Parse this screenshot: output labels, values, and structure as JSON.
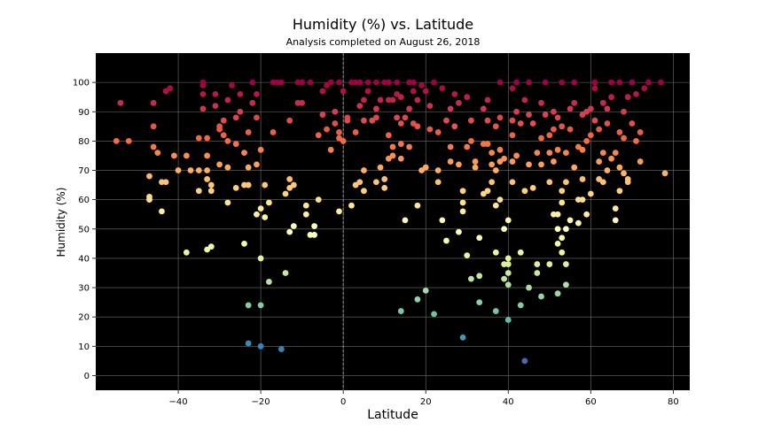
{
  "chart_data": {
    "type": "scatter",
    "title": "Humidity (%) vs. Latitude",
    "subtitle": "Analysis completed on August 26, 2018",
    "xlabel": "Latitude",
    "ylabel": "Humidity (%)",
    "xlim": [
      -60,
      84
    ],
    "ylim": [
      -5,
      110
    ],
    "xticks": [
      -40,
      -20,
      0,
      20,
      40,
      60,
      80
    ],
    "yticks": [
      0,
      10,
      20,
      30,
      40,
      50,
      60,
      70,
      80,
      90,
      100
    ],
    "grid": true,
    "background": "#000000",
    "zero_line_x": 0,
    "colormap": "Spectral",
    "points": [
      [
        -55,
        80
      ],
      [
        -52,
        80
      ],
      [
        -54,
        93
      ],
      [
        -46,
        93
      ],
      [
        -46,
        85
      ],
      [
        -46,
        78
      ],
      [
        -45,
        76
      ],
      [
        -47,
        68
      ],
      [
        -47,
        61
      ],
      [
        -47,
        60
      ],
      [
        -44,
        56
      ],
      [
        -43,
        66
      ],
      [
        -44,
        66
      ],
      [
        -42,
        98
      ],
      [
        -43,
        97
      ],
      [
        -41,
        75
      ],
      [
        -40,
        70
      ],
      [
        -38,
        75
      ],
      [
        -38,
        42
      ],
      [
        -37,
        70
      ],
      [
        -35,
        63
      ],
      [
        -35,
        70
      ],
      [
        -35,
        81
      ],
      [
        -34,
        91
      ],
      [
        -34,
        96
      ],
      [
        -34,
        99
      ],
      [
        -34,
        100
      ],
      [
        -33,
        81
      ],
      [
        -33,
        75
      ],
      [
        -33,
        70
      ],
      [
        -33,
        67
      ],
      [
        -33,
        43
      ],
      [
        -32,
        44
      ],
      [
        -32,
        65
      ],
      [
        -32,
        63
      ],
      [
        -31,
        96
      ],
      [
        -31,
        92
      ],
      [
        -30,
        85
      ],
      [
        -30,
        84
      ],
      [
        -30,
        72
      ],
      [
        -29,
        87
      ],
      [
        -29,
        82
      ],
      [
        -28,
        94
      ],
      [
        -28,
        80
      ],
      [
        -28,
        71
      ],
      [
        -28,
        59
      ],
      [
        -27,
        99
      ],
      [
        -26,
        79
      ],
      [
        -26,
        64
      ],
      [
        -26,
        88
      ],
      [
        -25,
        90
      ],
      [
        -25,
        96
      ],
      [
        -24,
        76
      ],
      [
        -24,
        65
      ],
      [
        -24,
        45
      ],
      [
        -23,
        83
      ],
      [
        -23,
        71
      ],
      [
        -23,
        65
      ],
      [
        -23,
        24
      ],
      [
        -23,
        11
      ],
      [
        -22,
        93
      ],
      [
        -22,
        100
      ],
      [
        -21,
        96
      ],
      [
        -21,
        88
      ],
      [
        -21,
        72
      ],
      [
        -21,
        55
      ],
      [
        -20,
        10
      ],
      [
        -20,
        24
      ],
      [
        -20,
        40
      ],
      [
        -20,
        57
      ],
      [
        -20,
        77
      ],
      [
        -19,
        54
      ],
      [
        -19,
        65
      ],
      [
        -18,
        59
      ],
      [
        -18,
        32
      ],
      [
        -17,
        83
      ],
      [
        -17,
        100
      ],
      [
        -16,
        100
      ],
      [
        -15,
        9
      ],
      [
        -15,
        100
      ],
      [
        -14,
        35
      ],
      [
        -14,
        62
      ],
      [
        -13,
        87
      ],
      [
        -13,
        49
      ],
      [
        -13,
        64
      ],
      [
        -13,
        67
      ],
      [
        -12,
        51
      ],
      [
        -12,
        65
      ],
      [
        -11,
        93
      ],
      [
        -11,
        100
      ],
      [
        -10,
        93
      ],
      [
        -10,
        100
      ],
      [
        -9,
        58
      ],
      [
        -9,
        55
      ],
      [
        -8,
        48
      ],
      [
        -8,
        100
      ],
      [
        -7,
        51
      ],
      [
        -7,
        48
      ],
      [
        -6,
        82
      ],
      [
        -6,
        60
      ],
      [
        -5,
        97
      ],
      [
        -5,
        89
      ],
      [
        -4,
        84
      ],
      [
        -4,
        99
      ],
      [
        -3,
        77
      ],
      [
        -3,
        100
      ],
      [
        -2,
        86
      ],
      [
        -2,
        90
      ],
      [
        -1,
        83
      ],
      [
        -1,
        56
      ],
      [
        -1,
        81
      ],
      [
        -1,
        100
      ],
      [
        0,
        97
      ],
      [
        0,
        80
      ],
      [
        1,
        87
      ],
      [
        1,
        88
      ],
      [
        2,
        58
      ],
      [
        2,
        100
      ],
      [
        3,
        65
      ],
      [
        3,
        83
      ],
      [
        3,
        100
      ],
      [
        4,
        66
      ],
      [
        4,
        92
      ],
      [
        4,
        100
      ],
      [
        5,
        63
      ],
      [
        5,
        70
      ],
      [
        5,
        87
      ],
      [
        5,
        94
      ],
      [
        6,
        100
      ],
      [
        6,
        97
      ],
      [
        7,
        87
      ],
      [
        8,
        66
      ],
      [
        8,
        88
      ],
      [
        8,
        91
      ],
      [
        8,
        100
      ],
      [
        9,
        94
      ],
      [
        9,
        71
      ],
      [
        10,
        64
      ],
      [
        10,
        100
      ],
      [
        10,
        67
      ],
      [
        11,
        74
      ],
      [
        11,
        82
      ],
      [
        11,
        94
      ],
      [
        11,
        100
      ],
      [
        12,
        75
      ],
      [
        12,
        78
      ],
      [
        12,
        94
      ],
      [
        13,
        88
      ],
      [
        13,
        96
      ],
      [
        13,
        100
      ],
      [
        14,
        22
      ],
      [
        14,
        74
      ],
      [
        14,
        79
      ],
      [
        14,
        86
      ],
      [
        14,
        95
      ],
      [
        15,
        53
      ],
      [
        15,
        88
      ],
      [
        16,
        91
      ],
      [
        16,
        78
      ],
      [
        16,
        100
      ],
      [
        17,
        100
      ],
      [
        17,
        86
      ],
      [
        17,
        97
      ],
      [
        18,
        26
      ],
      [
        18,
        58
      ],
      [
        18,
        85
      ],
      [
        18,
        94
      ],
      [
        19,
        70
      ],
      [
        19,
        99
      ],
      [
        20,
        29
      ],
      [
        20,
        71
      ],
      [
        20,
        97
      ],
      [
        21,
        92
      ],
      [
        21,
        84
      ],
      [
        22,
        21
      ],
      [
        22,
        100
      ],
      [
        23,
        83
      ],
      [
        23,
        70
      ],
      [
        23,
        66
      ],
      [
        24,
        53
      ],
      [
        24,
        98
      ],
      [
        25,
        46
      ],
      [
        25,
        87
      ],
      [
        26,
        73
      ],
      [
        26,
        78
      ],
      [
        26,
        91
      ],
      [
        27,
        85
      ],
      [
        27,
        96
      ],
      [
        28,
        72
      ],
      [
        28,
        93
      ],
      [
        28,
        49
      ],
      [
        29,
        63
      ],
      [
        29,
        59
      ],
      [
        29,
        56
      ],
      [
        29,
        13
      ],
      [
        30,
        41
      ],
      [
        30,
        78
      ],
      [
        30,
        95
      ],
      [
        31,
        33
      ],
      [
        31,
        80
      ],
      [
        31,
        87
      ],
      [
        32,
        73
      ],
      [
        32,
        71
      ],
      [
        33,
        47
      ],
      [
        33,
        34
      ],
      [
        33,
        25
      ],
      [
        34,
        62
      ],
      [
        34,
        79
      ],
      [
        34,
        91
      ],
      [
        35,
        63
      ],
      [
        35,
        79
      ],
      [
        35,
        87
      ],
      [
        35,
        94
      ],
      [
        36,
        66
      ],
      [
        36,
        72
      ],
      [
        36,
        76
      ],
      [
        37,
        58
      ],
      [
        37,
        70
      ],
      [
        37,
        85
      ],
      [
        37,
        22
      ],
      [
        37,
        42
      ],
      [
        38,
        100
      ],
      [
        38,
        88
      ],
      [
        38,
        77
      ],
      [
        38,
        73
      ],
      [
        38,
        60
      ],
      [
        39,
        50
      ],
      [
        39,
        38
      ],
      [
        39,
        33
      ],
      [
        39,
        74
      ],
      [
        40,
        40
      ],
      [
        40,
        31
      ],
      [
        40,
        38
      ],
      [
        40,
        35
      ],
      [
        40,
        19
      ],
      [
        40,
        53
      ],
      [
        41,
        66
      ],
      [
        41,
        73
      ],
      [
        41,
        82
      ],
      [
        41,
        87
      ],
      [
        41,
        98
      ],
      [
        42,
        90
      ],
      [
        42,
        75
      ],
      [
        42,
        100
      ],
      [
        43,
        24
      ],
      [
        43,
        42
      ],
      [
        43,
        86
      ],
      [
        44,
        5
      ],
      [
        44,
        63
      ],
      [
        44,
        94
      ],
      [
        45,
        72
      ],
      [
        45,
        30
      ],
      [
        45,
        100
      ],
      [
        45,
        89
      ],
      [
        46,
        64
      ],
      [
        46,
        86
      ],
      [
        47,
        38
      ],
      [
        47,
        35
      ],
      [
        47,
        76
      ],
      [
        48,
        72
      ],
      [
        48,
        27
      ],
      [
        48,
        81
      ],
      [
        48,
        93
      ],
      [
        49,
        100
      ],
      [
        49,
        89
      ],
      [
        50,
        38
      ],
      [
        50,
        66
      ],
      [
        50,
        76
      ],
      [
        50,
        82
      ],
      [
        51,
        55
      ],
      [
        51,
        73
      ],
      [
        51,
        84
      ],
      [
        51,
        90
      ],
      [
        52,
        28
      ],
      [
        52,
        45
      ],
      [
        52,
        50
      ],
      [
        52,
        55
      ],
      [
        52,
        77
      ],
      [
        52,
        88
      ],
      [
        53,
        42
      ],
      [
        53,
        47
      ],
      [
        53,
        59
      ],
      [
        53,
        63
      ],
      [
        53,
        85
      ],
      [
        53,
        100
      ],
      [
        54,
        31
      ],
      [
        54,
        38
      ],
      [
        54,
        50
      ],
      [
        54,
        66
      ],
      [
        54,
        76
      ],
      [
        55,
        53
      ],
      [
        55,
        84
      ],
      [
        55,
        91
      ],
      [
        56,
        71
      ],
      [
        56,
        93
      ],
      [
        56,
        100
      ],
      [
        57,
        52
      ],
      [
        57,
        60
      ],
      [
        57,
        78
      ],
      [
        58,
        60
      ],
      [
        58,
        67
      ],
      [
        58,
        77
      ],
      [
        58,
        89
      ],
      [
        59,
        55
      ],
      [
        59,
        80
      ],
      [
        59,
        90
      ],
      [
        60,
        62
      ],
      [
        60,
        82
      ],
      [
        60,
        91
      ],
      [
        61,
        87
      ],
      [
        61,
        98
      ],
      [
        61,
        100
      ],
      [
        62,
        67
      ],
      [
        62,
        73
      ],
      [
        62,
        84
      ],
      [
        63,
        66
      ],
      [
        63,
        76
      ],
      [
        63,
        93
      ],
      [
        64,
        70
      ],
      [
        64,
        86
      ],
      [
        64,
        91
      ],
      [
        65,
        74
      ],
      [
        65,
        95
      ],
      [
        65,
        100
      ],
      [
        66,
        53
      ],
      [
        66,
        57
      ],
      [
        66,
        76
      ],
      [
        67,
        63
      ],
      [
        67,
        71
      ],
      [
        67,
        83
      ],
      [
        67,
        100
      ],
      [
        68,
        69
      ],
      [
        68,
        81
      ],
      [
        68,
        90
      ],
      [
        69,
        67
      ],
      [
        69,
        66
      ],
      [
        69,
        95
      ],
      [
        70,
        86
      ],
      [
        70,
        100
      ],
      [
        71,
        80
      ],
      [
        71,
        96
      ],
      [
        72,
        83
      ],
      [
        72,
        73
      ],
      [
        73,
        98
      ],
      [
        74,
        100
      ],
      [
        77,
        100
      ],
      [
        78,
        69
      ]
    ]
  }
}
